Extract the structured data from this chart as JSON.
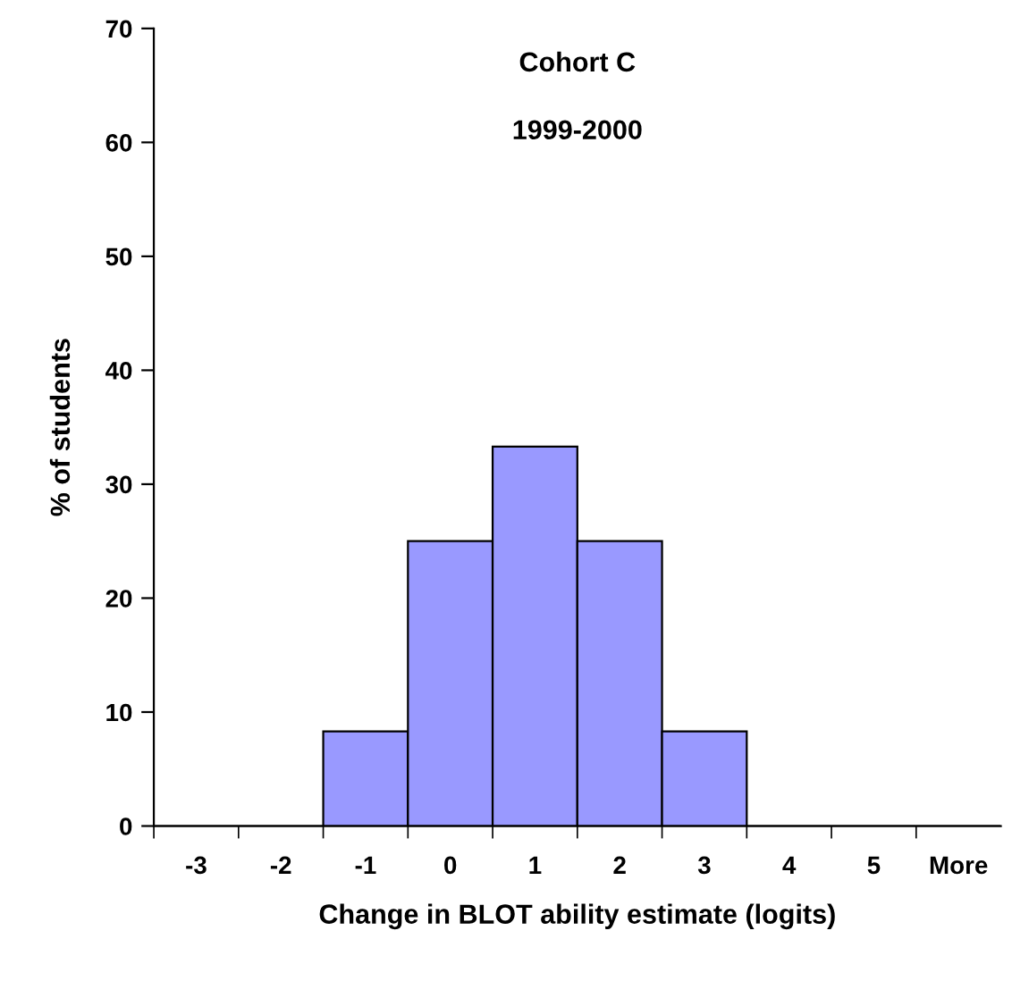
{
  "chart_data": {
    "type": "bar",
    "title": "Cohort C",
    "subtitle": "1999-2000",
    "xlabel": "Change in BLOT ability estimate (logits)",
    "ylabel": "% of students",
    "categories": [
      "-3",
      "-2",
      "-1",
      "0",
      "1",
      "2",
      "3",
      "4",
      "5",
      "More"
    ],
    "values": [
      0,
      0,
      8.3,
      25,
      33.3,
      25,
      8.3,
      0,
      0,
      0
    ],
    "color": "#9999ff",
    "ylim": [
      0,
      70
    ],
    "yticks": [
      0,
      10,
      20,
      30,
      40,
      50,
      60,
      70
    ],
    "grid": false,
    "legend": false
  }
}
